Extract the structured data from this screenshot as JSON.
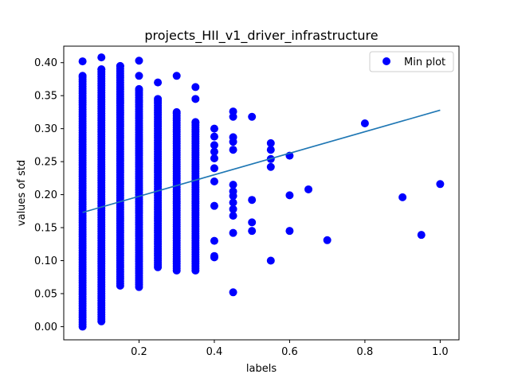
{
  "chart_data": {
    "type": "scatter",
    "title": "projects_HII_v1_driver_infrastructure",
    "xlabel": "labels",
    "ylabel": "values of std",
    "xlim": [
      0.0,
      1.05
    ],
    "ylim": [
      -0.02,
      0.425
    ],
    "x_ticks": [
      0.2,
      0.4,
      0.6,
      0.8,
      1.0
    ],
    "x_tick_labels": [
      "0.2",
      "0.4",
      "0.6",
      "0.8",
      "1.0"
    ],
    "y_ticks": [
      0.0,
      0.05,
      0.1,
      0.15,
      0.2,
      0.25,
      0.3,
      0.35,
      0.4
    ],
    "y_tick_labels": [
      "0.00",
      "0.05",
      "0.10",
      "0.15",
      "0.20",
      "0.25",
      "0.30",
      "0.35",
      "0.40"
    ],
    "grid": false,
    "legend_position": "top-right",
    "series": [
      {
        "name": "Min plot",
        "kind": "scatter",
        "color": "#0000ff",
        "points": [
          {
            "x": 0.05,
            "ranges": [
              [
                0.0,
                0.38
              ]
            ],
            "extra": [
              0.402
            ]
          },
          {
            "x": 0.1,
            "ranges": [
              [
                0.008,
                0.39
              ]
            ],
            "extra": [
              0.408
            ]
          },
          {
            "x": 0.15,
            "ranges": [
              [
                0.062,
                0.395
              ]
            ]
          },
          {
            "x": 0.2,
            "ranges": [
              [
                0.06,
                0.36
              ]
            ],
            "extra": [
              0.38,
              0.403
            ]
          },
          {
            "x": 0.25,
            "ranges": [
              [
                0.09,
                0.345
              ]
            ],
            "extra": [
              0.37
            ]
          },
          {
            "x": 0.3,
            "ranges": [
              [
                0.085,
                0.325
              ]
            ],
            "extra": [
              0.38
            ]
          },
          {
            "x": 0.35,
            "ranges": [
              [
                0.085,
                0.31
              ]
            ],
            "extra": [
              0.345,
              0.363
            ]
          },
          {
            "x": 0.4,
            "values": [
              0.105,
              0.107,
              0.13,
              0.183,
              0.22,
              0.24,
              0.255,
              0.265,
              0.275,
              0.288,
              0.3
            ]
          },
          {
            "x": 0.45,
            "values": [
              0.052,
              0.142,
              0.168,
              0.178,
              0.188,
              0.198,
              0.205,
              0.215,
              0.268,
              0.28,
              0.287,
              0.318,
              0.326
            ]
          },
          {
            "x": 0.5,
            "values": [
              0.145,
              0.158,
              0.192,
              0.318
            ]
          },
          {
            "x": 0.55,
            "values": [
              0.1,
              0.242,
              0.254,
              0.268,
              0.278
            ]
          },
          {
            "x": 0.6,
            "values": [
              0.145,
              0.199,
              0.259
            ]
          },
          {
            "x": 0.65,
            "values": [
              0.208
            ]
          },
          {
            "x": 0.7,
            "values": [
              0.131
            ]
          },
          {
            "x": 0.8,
            "values": [
              0.308
            ]
          },
          {
            "x": 0.9,
            "values": [
              0.196
            ]
          },
          {
            "x": 0.95,
            "values": [
              0.139
            ]
          },
          {
            "x": 1.0,
            "values": [
              0.216
            ]
          }
        ]
      },
      {
        "name": "",
        "kind": "line",
        "color": "#1f77b4",
        "x": [
          0.05,
          1.0
        ],
        "y": [
          0.173,
          0.328
        ]
      }
    ]
  }
}
